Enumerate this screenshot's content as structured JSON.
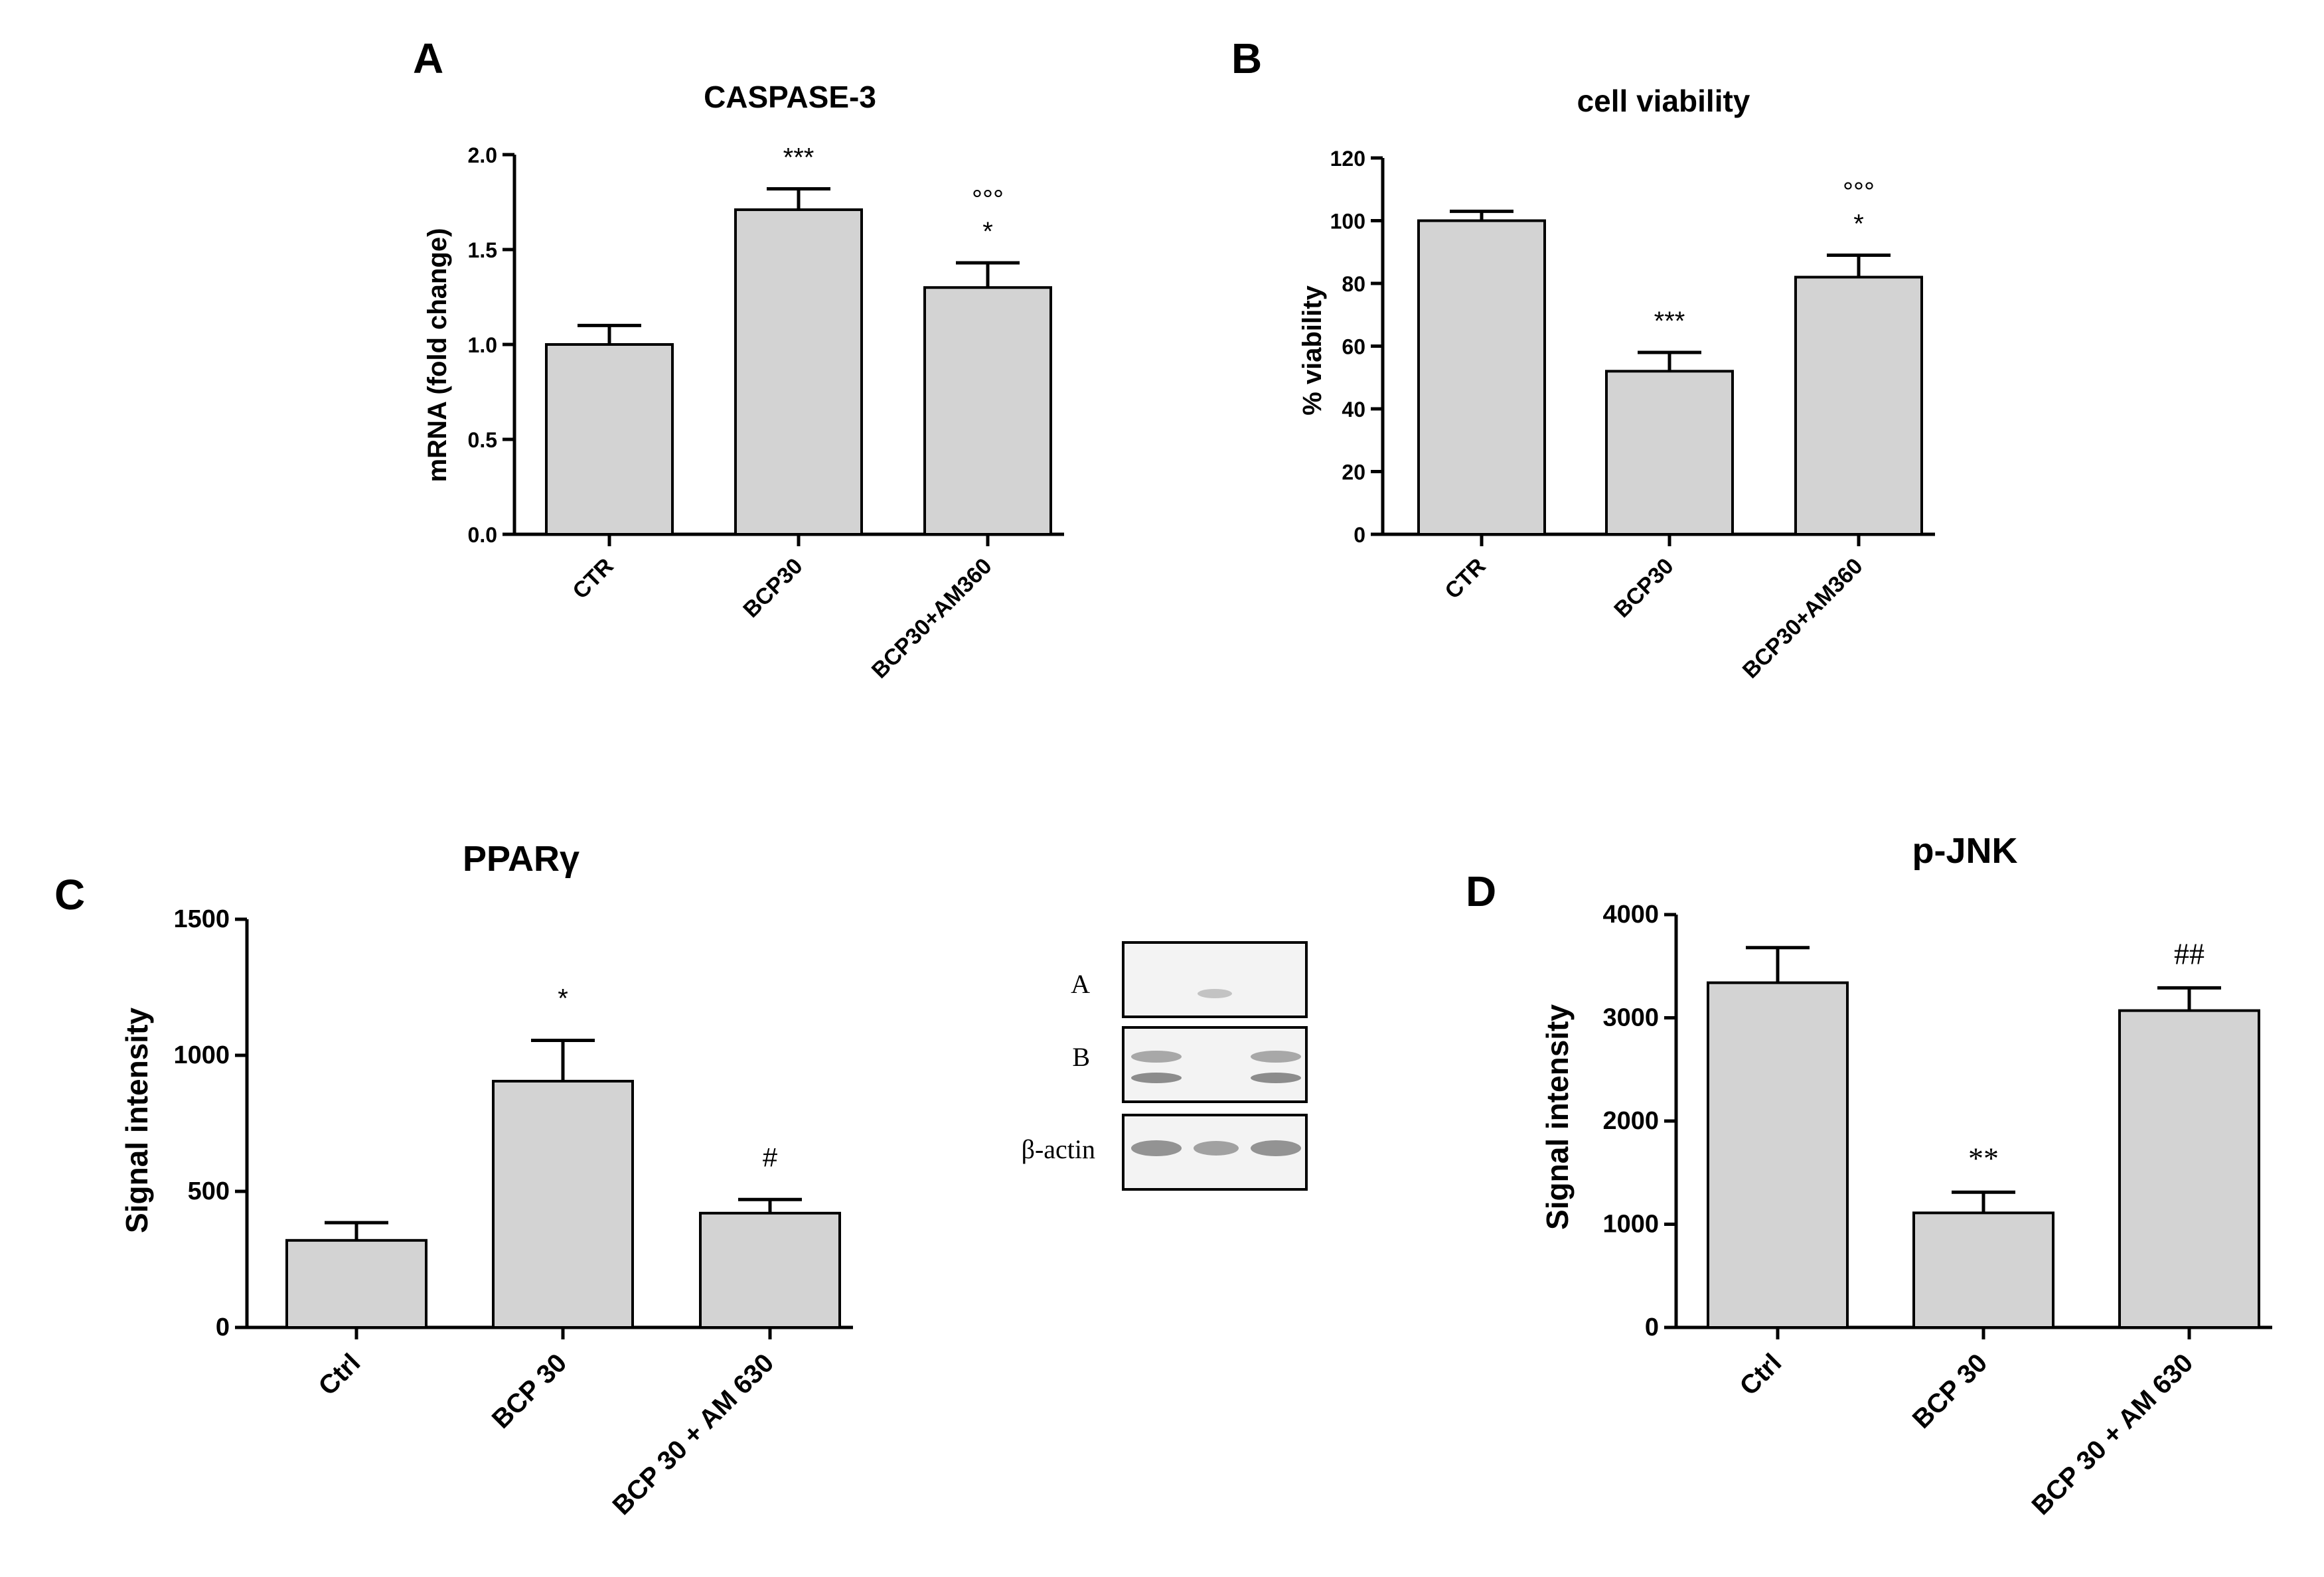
{
  "chart_data": [
    {
      "id": "A",
      "panel_label": "A",
      "type": "bar",
      "title": "CASPASE-3",
      "ylabel": "mRNA (fold change)",
      "xlabel": "",
      "ylim": [
        0,
        2.0
      ],
      "yticks": [
        "0.0",
        "0.5",
        "1.0",
        "1.5",
        "2.0"
      ],
      "categories": [
        "CTR",
        "BCP30",
        "BCP30+AM360"
      ],
      "values": [
        1.0,
        1.71,
        1.3
      ],
      "errors": [
        0.1,
        0.11,
        0.13
      ],
      "annotations": [
        [],
        [
          "***"
        ],
        [
          "°°°",
          "*"
        ]
      ]
    },
    {
      "id": "B",
      "panel_label": "B",
      "type": "bar",
      "title": "cell viability",
      "ylabel": "% viability",
      "xlabel": "",
      "ylim": [
        0,
        120
      ],
      "yticks": [
        "0",
        "20",
        "40",
        "60",
        "80",
        "100",
        "120"
      ],
      "categories": [
        "CTR",
        "BCP30",
        "BCP30+AM360"
      ],
      "values": [
        100,
        52,
        82
      ],
      "errors": [
        3,
        6,
        7
      ],
      "annotations": [
        [],
        [
          "***"
        ],
        [
          "°°°",
          "*"
        ]
      ]
    },
    {
      "id": "C",
      "panel_label": "C",
      "type": "bar",
      "title": "PPARγ",
      "ylabel": "Signal intensity",
      "xlabel": "",
      "ylim": [
        0,
        1500
      ],
      "yticks": [
        "0",
        "500",
        "1000",
        "1500"
      ],
      "categories": [
        "Ctrl",
        "BCP 30",
        "BCP 30 + AM 630"
      ],
      "values": [
        320,
        905,
        420
      ],
      "errors": [
        65,
        150,
        50
      ],
      "annotations": [
        [],
        [
          "*"
        ],
        [
          "#"
        ]
      ]
    },
    {
      "id": "D",
      "panel_label": "D",
      "type": "bar",
      "title": "p-JNK",
      "ylabel": "Signal intensity",
      "xlabel": "",
      "ylim": [
        0,
        4000
      ],
      "yticks": [
        "0",
        "1000",
        "2000",
        "3000",
        "4000"
      ],
      "categories": [
        "Ctrl",
        "BCP 30",
        "BCP 30 + AM 630"
      ],
      "values": [
        3340,
        1110,
        3070
      ],
      "errors": [
        340,
        200,
        220
      ],
      "annotations": [
        [],
        [
          "**"
        ],
        [
          "##"
        ]
      ]
    }
  ],
  "western_blot": {
    "rows": [
      "A",
      "B",
      "β-actin"
    ]
  }
}
